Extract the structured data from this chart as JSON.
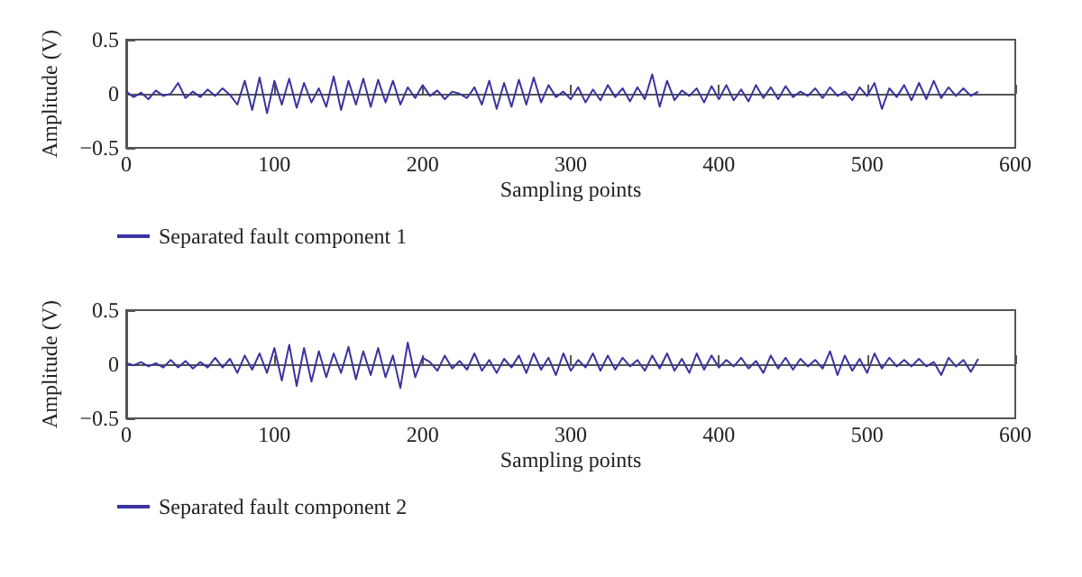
{
  "chart_data": [
    {
      "type": "line",
      "xlabel": "Sampling points",
      "ylabel": "Amplitude (V)",
      "xlim": [
        0,
        600
      ],
      "xticks": [
        0,
        100,
        200,
        300,
        400,
        500,
        600
      ],
      "ylim": [
        -0.5,
        0.5
      ],
      "yticks": [
        -0.5,
        0,
        0.5
      ],
      "legend": "bottom left",
      "x": [
        0,
        5,
        10,
        15,
        20,
        25,
        30,
        35,
        40,
        45,
        50,
        55,
        60,
        65,
        70,
        75,
        80,
        85,
        90,
        95,
        100,
        105,
        110,
        115,
        120,
        125,
        130,
        135,
        140,
        145,
        150,
        155,
        160,
        165,
        170,
        175,
        180,
        185,
        190,
        195,
        200,
        205,
        210,
        215,
        220,
        225,
        230,
        235,
        240,
        245,
        250,
        255,
        260,
        265,
        270,
        275,
        280,
        285,
        290,
        295,
        300,
        305,
        310,
        315,
        320,
        325,
        330,
        335,
        340,
        345,
        350,
        355,
        360,
        365,
        370,
        375,
        380,
        385,
        390,
        395,
        400,
        405,
        410,
        415,
        420,
        425,
        430,
        435,
        440,
        445,
        450,
        455,
        460,
        465,
        470,
        475,
        480,
        485,
        490,
        495,
        500,
        505,
        510,
        515,
        520,
        525,
        530,
        535,
        540,
        545,
        550,
        555,
        560,
        565,
        570,
        575
      ],
      "series": [
        {
          "name": "Separated fault component 1",
          "color": "#3a33a0",
          "values": [
            0.02,
            -0.03,
            0.01,
            -0.05,
            0.03,
            -0.02,
            0.0,
            0.1,
            -0.04,
            0.02,
            -0.03,
            0.04,
            -0.02,
            0.05,
            -0.01,
            -0.1,
            0.12,
            -0.15,
            0.15,
            -0.18,
            0.12,
            -0.1,
            0.14,
            -0.13,
            0.1,
            -0.08,
            0.05,
            -0.12,
            0.16,
            -0.15,
            0.12,
            -0.1,
            0.14,
            -0.12,
            0.13,
            -0.08,
            0.12,
            -0.1,
            0.06,
            -0.04,
            0.08,
            -0.02,
            0.03,
            -0.05,
            0.02,
            0.0,
            -0.04,
            0.06,
            -0.1,
            0.12,
            -0.14,
            0.1,
            -0.12,
            0.13,
            -0.1,
            0.15,
            -0.08,
            0.08,
            -0.03,
            0.02,
            -0.05,
            0.06,
            -0.08,
            0.04,
            -0.06,
            0.08,
            -0.03,
            0.05,
            -0.07,
            0.06,
            -0.05,
            0.18,
            -0.12,
            0.12,
            -0.06,
            0.03,
            -0.02,
            0.05,
            -0.08,
            0.07,
            -0.05,
            0.08,
            -0.06,
            0.04,
            -0.07,
            0.08,
            -0.04,
            0.06,
            -0.05,
            0.07,
            -0.03,
            0.02,
            -0.02,
            0.05,
            -0.04,
            0.06,
            -0.02,
            0.02,
            -0.06,
            0.06,
            -0.02,
            0.1,
            -0.14,
            0.05,
            -0.03,
            0.08,
            -0.06,
            0.1,
            -0.05,
            0.12,
            -0.04,
            0.06,
            -0.02,
            0.05,
            -0.02,
            0.02
          ]
        }
      ]
    },
    {
      "type": "line",
      "xlabel": "Sampling points",
      "ylabel": "Amplitude (V)",
      "xlim": [
        0,
        600
      ],
      "xticks": [
        0,
        100,
        200,
        300,
        400,
        500,
        600
      ],
      "ylim": [
        -0.5,
        0.5
      ],
      "yticks": [
        -0.5,
        0,
        0.5
      ],
      "legend": "bottom left",
      "x": [
        0,
        5,
        10,
        15,
        20,
        25,
        30,
        35,
        40,
        45,
        50,
        55,
        60,
        65,
        70,
        75,
        80,
        85,
        90,
        95,
        100,
        105,
        110,
        115,
        120,
        125,
        130,
        135,
        140,
        145,
        150,
        155,
        160,
        165,
        170,
        175,
        180,
        185,
        190,
        195,
        200,
        205,
        210,
        215,
        220,
        225,
        230,
        235,
        240,
        245,
        250,
        255,
        260,
        265,
        270,
        275,
        280,
        285,
        290,
        295,
        300,
        305,
        310,
        315,
        320,
        325,
        330,
        335,
        340,
        345,
        350,
        355,
        360,
        365,
        370,
        375,
        380,
        385,
        390,
        395,
        400,
        405,
        410,
        415,
        420,
        425,
        430,
        435,
        440,
        445,
        450,
        455,
        460,
        465,
        470,
        475,
        480,
        485,
        490,
        495,
        500,
        505,
        510,
        515,
        520,
        525,
        530,
        535,
        540,
        545,
        550,
        555,
        560,
        565,
        570,
        575
      ],
      "series": [
        {
          "name": "Separated fault component 2",
          "color": "#3a33a0",
          "values": [
            0.01,
            -0.01,
            0.02,
            -0.02,
            0.01,
            -0.03,
            0.04,
            -0.03,
            0.03,
            -0.04,
            0.02,
            -0.03,
            0.06,
            -0.03,
            0.05,
            -0.08,
            0.08,
            -0.05,
            0.1,
            -0.08,
            0.15,
            -0.15,
            0.18,
            -0.2,
            0.15,
            -0.16,
            0.12,
            -0.12,
            0.1,
            -0.08,
            0.16,
            -0.14,
            0.12,
            -0.1,
            0.15,
            -0.12,
            0.08,
            -0.22,
            0.2,
            -0.12,
            0.06,
            0.02,
            -0.06,
            0.08,
            -0.04,
            0.03,
            -0.05,
            0.1,
            -0.06,
            0.04,
            -0.08,
            0.05,
            -0.03,
            0.08,
            -0.08,
            0.1,
            -0.05,
            0.06,
            -0.1,
            0.1,
            -0.06,
            0.04,
            -0.03,
            0.1,
            -0.06,
            0.08,
            -0.05,
            0.06,
            -0.02,
            0.04,
            -0.06,
            0.08,
            -0.04,
            0.1,
            -0.06,
            0.05,
            -0.08,
            0.1,
            -0.05,
            0.08,
            -0.03,
            0.04,
            -0.02,
            0.06,
            -0.04,
            0.03,
            -0.08,
            0.08,
            -0.04,
            0.06,
            -0.05,
            0.05,
            -0.02,
            0.04,
            -0.04,
            0.12,
            -0.1,
            0.08,
            -0.06,
            0.05,
            -0.08,
            0.1,
            -0.04,
            0.06,
            -0.02,
            0.04,
            -0.02,
            0.05,
            -0.02,
            0.02,
            -0.1,
            0.06,
            -0.02,
            0.04,
            -0.07,
            0.05
          ]
        }
      ]
    }
  ]
}
